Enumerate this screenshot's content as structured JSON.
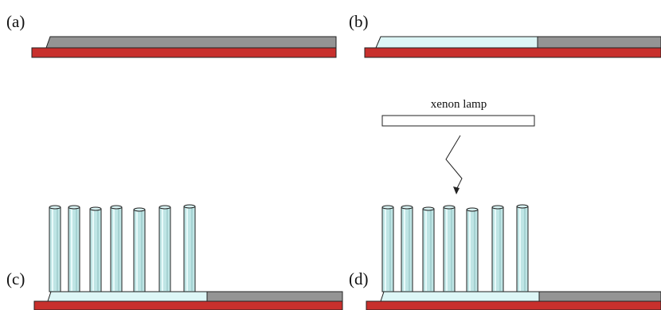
{
  "panels": [
    {
      "id": "a",
      "label": "(a)"
    },
    {
      "id": "b",
      "label": "(b)"
    },
    {
      "id": "c",
      "label": "(c)"
    },
    {
      "id": "d",
      "label": "(d)"
    }
  ],
  "lamp": {
    "label": "xenon lamp"
  },
  "colors": {
    "substrate": "#C8302D",
    "metal_layer": "#949494",
    "seed_layer": "#DDF6F6",
    "rod_fill": "#BFE5E5",
    "rod_highlight": "#E8FAFA",
    "outline": "#222222"
  }
}
